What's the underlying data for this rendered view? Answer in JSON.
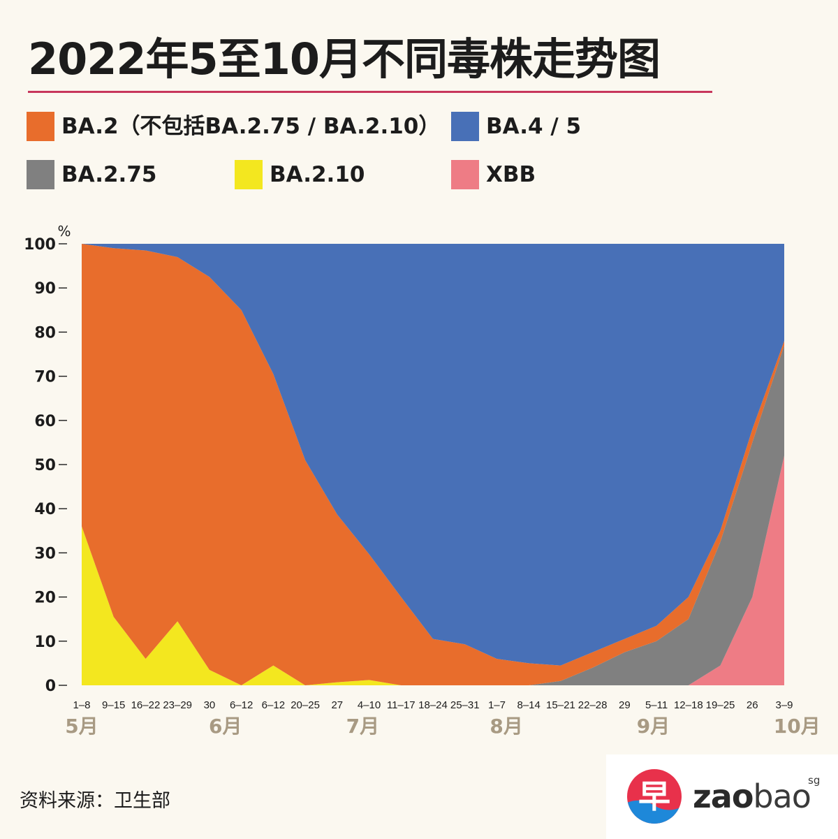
{
  "title": "2022年5至10月不同毒株走势图",
  "colors": {
    "rule": "#c7365c",
    "ba2": "#e86d2c",
    "ba45": "#4870b7",
    "ba275": "#808080",
    "ba210": "#f3e71f",
    "xbb": "#ee7c85",
    "axis_text": "#1c1c1c",
    "month_text": "#a89a83",
    "logo_red": "#e8314b",
    "logo_blue": "#1e88d9"
  },
  "legend": [
    {
      "key": "ba2",
      "label": "BA.2（不包括BA.2.75 / BA.2.10）",
      "color": "#e86d2c"
    },
    {
      "key": "ba45",
      "label": "BA.4 / 5",
      "color": "#4870b7"
    },
    {
      "key": "ba275",
      "label": "BA.2.75",
      "color": "#808080"
    },
    {
      "key": "ba210",
      "label": "BA.2.10",
      "color": "#f3e71f"
    },
    {
      "key": "xbb",
      "label": "XBB",
      "color": "#ee7c85"
    }
  ],
  "chart_data": {
    "type": "area",
    "stacked": true,
    "y_unit": "%",
    "ylim": [
      0,
      100
    ],
    "yticks": [
      0,
      10,
      20,
      30,
      40,
      50,
      60,
      70,
      80,
      90,
      100
    ],
    "x": [
      "1–8",
      "9–15",
      "16–22",
      "23–29",
      "30",
      "6–12",
      "6–12",
      "20–25",
      "27",
      "4–10",
      "11–17",
      "18–24",
      "25–31",
      "1–7",
      "8–14",
      "15–21",
      "22–28",
      "29",
      "5–11",
      "12–18",
      "19–25",
      "26",
      "3–9"
    ],
    "months": [
      {
        "label": "5月",
        "index": 0
      },
      {
        "label": "6月",
        "index": 4.5
      },
      {
        "label": "7月",
        "index": 8.8
      },
      {
        "label": "8月",
        "index": 13.3
      },
      {
        "label": "9月",
        "index": 17.9
      },
      {
        "label": "10月",
        "index": 22.4
      }
    ],
    "series": [
      {
        "name": "XBB",
        "color": "#ee7c85",
        "values": [
          0,
          0,
          0,
          0,
          0,
          0,
          0,
          0,
          0,
          0,
          0,
          0,
          0,
          0,
          0,
          0,
          0,
          0,
          0,
          0,
          4.5,
          20,
          52
        ]
      },
      {
        "name": "BA.2.75",
        "color": "#808080",
        "values": [
          0,
          0,
          0,
          0,
          0,
          0,
          0,
          0,
          0,
          0,
          0,
          0,
          0,
          0,
          0,
          1,
          4,
          7.5,
          10,
          15,
          28,
          35,
          25
        ]
      },
      {
        "name": "BA.2.10",
        "color": "#f3e71f",
        "values": [
          36,
          15.5,
          6,
          14.5,
          3.5,
          0,
          4.5,
          0,
          0.7,
          1.2,
          0,
          0,
          0,
          0,
          0,
          0,
          0,
          0,
          0,
          0,
          0,
          0,
          0
        ]
      },
      {
        "name": "BA.2（不包括BA.2.75 / BA.2.10）",
        "color": "#e86d2c",
        "values": [
          64,
          83.5,
          92.5,
          82.5,
          89,
          85,
          66,
          51,
          38,
          28.5,
          20,
          10.5,
          9.3,
          6,
          5,
          3.5,
          3.5,
          3,
          3.5,
          5,
          2.5,
          3,
          1
        ]
      },
      {
        "name": "BA.4 / 5",
        "color": "#4870b7",
        "values": [
          0,
          1,
          1.5,
          3,
          7.5,
          15,
          29.5,
          49,
          61.3,
          70.3,
          80,
          89.5,
          90.7,
          94,
          95,
          95.5,
          92.5,
          89.5,
          86.5,
          80,
          65,
          42,
          22
        ]
      }
    ]
  },
  "source": "资料来源：卫生部",
  "logo": {
    "glyph": "早",
    "word_bold": "zao",
    "word_light": "bao",
    "suffix": "sg"
  }
}
